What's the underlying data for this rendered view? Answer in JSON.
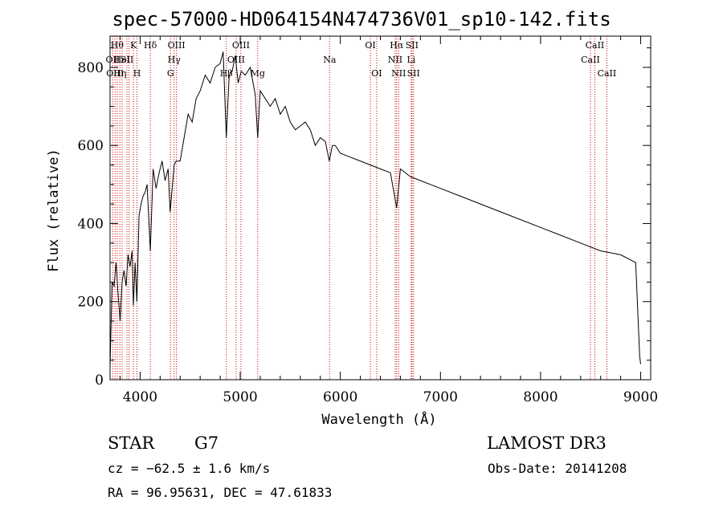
{
  "chart_data": {
    "type": "line",
    "title": "spec-57000-HD064154N474736V01_sp10-142.fits",
    "xlabel": "Wavelength (Å)",
    "ylabel": "Flux (relative)",
    "xlim": [
      3700,
      9100
    ],
    "ylim": [
      0,
      880
    ],
    "xticks": [
      4000,
      5000,
      6000,
      7000,
      8000,
      9000
    ],
    "yticks": [
      0,
      200,
      400,
      600,
      800
    ],
    "grid": false,
    "series": [
      {
        "x": [
          3700,
          3720,
          3740,
          3760,
          3780,
          3800,
          3820,
          3840,
          3860,
          3880,
          3900,
          3920,
          3933,
          3950,
          3968,
          3990,
          4010,
          4030,
          4050,
          4070,
          4102,
          4130,
          4160,
          4190,
          4220,
          4250,
          4280,
          4300,
          4340,
          4360,
          4400,
          4440,
          4480,
          4520,
          4560,
          4600,
          4650,
          4700,
          4750,
          4800,
          4830,
          4861,
          4890,
          4920,
          4950,
          4980,
          5010,
          5050,
          5100,
          5150,
          5175,
          5200,
          5250,
          5300,
          5350,
          5400,
          5450,
          5500,
          5550,
          5600,
          5650,
          5700,
          5750,
          5800,
          5850,
          5890,
          5920,
          5950,
          6000,
          6100,
          6200,
          6300,
          6400,
          6500,
          6563,
          6600,
          6700,
          6800,
          6900,
          7000,
          7200,
          7400,
          7600,
          7800,
          8000,
          8200,
          8400,
          8500,
          8600,
          8700,
          8800,
          8950,
          8990,
          9000
        ],
        "y": [
          30,
          250,
          240,
          300,
          220,
          150,
          250,
          280,
          240,
          320,
          290,
          330,
          190,
          300,
          200,
          420,
          450,
          470,
          480,
          500,
          330,
          540,
          490,
          530,
          560,
          510,
          540,
          430,
          550,
          560,
          560,
          620,
          680,
          660,
          720,
          740,
          780,
          760,
          800,
          810,
          840,
          620,
          780,
          790,
          830,
          760,
          790,
          780,
          800,
          730,
          620,
          740,
          720,
          700,
          720,
          680,
          700,
          660,
          640,
          650,
          660,
          640,
          600,
          620,
          610,
          560,
          600,
          600,
          580,
          570,
          560,
          550,
          540,
          530,
          440,
          540,
          520,
          510,
          500,
          490,
          470,
          450,
          430,
          410,
          390,
          370,
          350,
          340,
          330,
          325,
          320,
          300,
          60,
          40
        ]
      }
    ],
    "lines": [
      {
        "x": 3727,
        "label": "OII",
        "row": 1
      },
      {
        "x": 3750,
        "label": "OIII",
        "row": 2
      },
      {
        "x": 3771,
        "label": "Hθ",
        "row": 0
      },
      {
        "x": 3798,
        "label": "Hη",
        "row": 2
      },
      {
        "x": 3820,
        "label": "HeI",
        "row": 1
      },
      {
        "x": 3869,
        "label": "SII",
        "row": 1
      },
      {
        "x": 3889,
        "label": "",
        "row": 1
      },
      {
        "x": 3934,
        "label": "K",
        "row": 0
      },
      {
        "x": 3969,
        "label": "H",
        "row": 2
      },
      {
        "x": 4102,
        "label": "Hδ",
        "row": 0
      },
      {
        "x": 4304,
        "label": "G",
        "row": 2
      },
      {
        "x": 4340,
        "label": "Hγ",
        "row": 1
      },
      {
        "x": 4363,
        "label": "OIII",
        "row": 0
      },
      {
        "x": 4861,
        "label": "Hβ",
        "row": 2
      },
      {
        "x": 4959,
        "label": "OIII",
        "row": 1
      },
      {
        "x": 5007,
        "label": "OIII",
        "row": 0
      },
      {
        "x": 5175,
        "label": "Mg",
        "row": 2
      },
      {
        "x": 5893,
        "label": "Na",
        "row": 1
      },
      {
        "x": 6300,
        "label": "OI",
        "row": 0
      },
      {
        "x": 6363,
        "label": "OI",
        "row": 2
      },
      {
        "x": 6548,
        "label": "NII",
        "row": 1
      },
      {
        "x": 6563,
        "label": "Hα",
        "row": 0
      },
      {
        "x": 6583,
        "label": "NII",
        "row": 2
      },
      {
        "x": 6708,
        "label": "Li",
        "row": 1
      },
      {
        "x": 6716,
        "label": "SII",
        "row": 0
      },
      {
        "x": 6731,
        "label": "SII",
        "row": 2
      },
      {
        "x": 8498,
        "label": "CaII",
        "row": 1
      },
      {
        "x": 8542,
        "label": "CaII",
        "row": 0
      },
      {
        "x": 8662,
        "label": "CaII",
        "row": 2
      }
    ],
    "line_color": "#cc0000"
  },
  "info": {
    "class": "STAR",
    "subclass": "G7",
    "survey": "LAMOST DR3",
    "cz": "cz = −62.5 ± 1.6 km/s",
    "obsdate": "Obs-Date: 20141208",
    "radec": "RA =  96.95631, DEC =  47.61833"
  }
}
